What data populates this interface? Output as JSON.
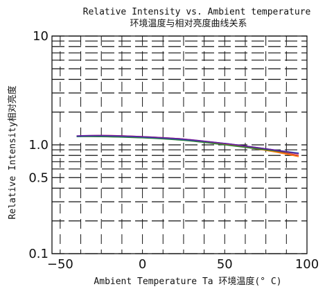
{
  "chart_data": {
    "type": "line",
    "title": "Relative Intensity vs. Ambient temperature",
    "subtitle": "环境温度与相对亮度曲线关系",
    "xlabel": "Ambient Temperature Ta 环境温度(° C)",
    "ylabel": "Relative Intensity相对亮度",
    "xlim": [
      -55,
      100
    ],
    "ylim": [
      0.1,
      10
    ],
    "yscale": "log",
    "grid": true,
    "legend": "none",
    "x_ticks": [
      {
        "value": -50,
        "label": "−50"
      },
      {
        "value": 0,
        "label": "0"
      },
      {
        "value": 50,
        "label": "50"
      },
      {
        "value": 100,
        "label": "100"
      }
    ],
    "y_ticks": [
      {
        "value": 10,
        "label": "10"
      },
      {
        "value": 1,
        "label": "1.0"
      },
      {
        "value": 0.5,
        "label": "0.5"
      },
      {
        "value": 0.1,
        "label": "0.1"
      }
    ],
    "series": [
      {
        "color": "#e53935",
        "x": [
          -40,
          -25,
          0,
          25,
          50,
          75,
          95
        ],
        "y": [
          1.2,
          1.22,
          1.19,
          1.13,
          1.02,
          0.9,
          0.8
        ]
      },
      {
        "color": "#ff7f0e",
        "x": [
          -40,
          -25,
          0,
          25,
          50,
          75,
          95
        ],
        "y": [
          1.2,
          1.21,
          1.18,
          1.12,
          1.01,
          0.89,
          0.78
        ]
      },
      {
        "color": "#2e7d32",
        "x": [
          -40,
          -25,
          0,
          25,
          50,
          75,
          95
        ],
        "y": [
          1.19,
          1.19,
          1.16,
          1.1,
          1.0,
          0.9,
          0.83
        ]
      },
      {
        "color": "#1565c0",
        "x": [
          -40,
          -25,
          0,
          25,
          50,
          75,
          95
        ],
        "y": [
          1.2,
          1.21,
          1.18,
          1.12,
          1.03,
          0.92,
          0.84
        ]
      },
      {
        "color": "#6a1b9a",
        "x": [
          -40,
          -25,
          0,
          25,
          50,
          75,
          95
        ],
        "y": [
          1.21,
          1.22,
          1.19,
          1.13,
          1.03,
          0.92,
          0.83
        ]
      }
    ]
  }
}
